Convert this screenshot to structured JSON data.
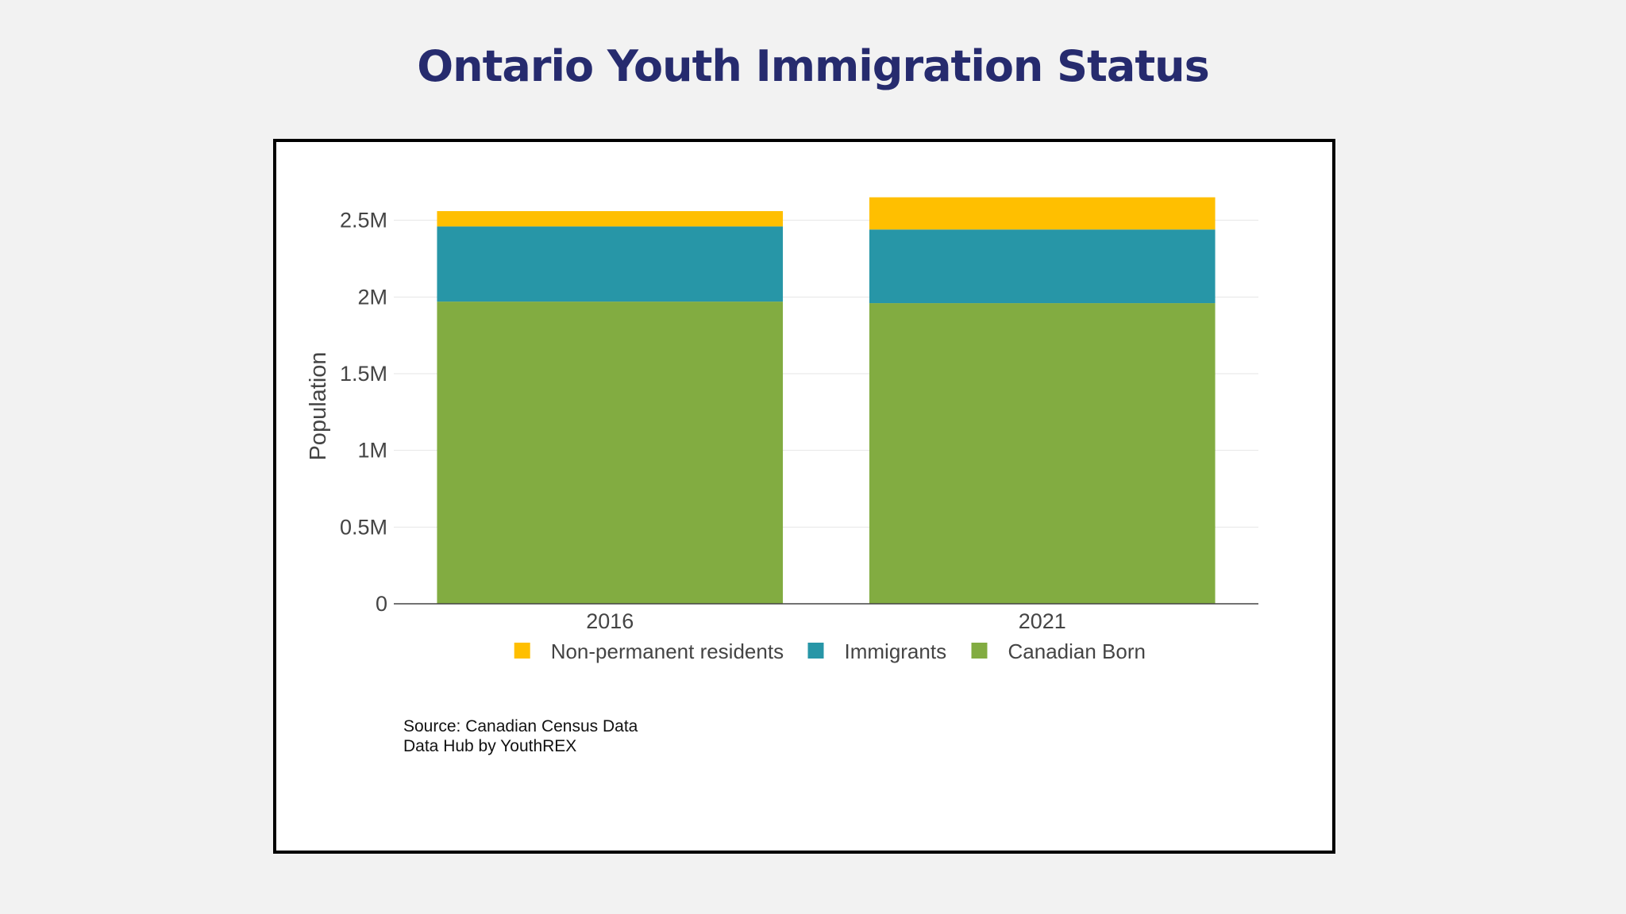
{
  "page": {
    "title": "Ontario Youth Immigration Status"
  },
  "chart_data": {
    "type": "bar",
    "stacked": true,
    "categories": [
      "2016",
      "2021"
    ],
    "series": [
      {
        "name": "Canadian Born",
        "color": "#82ac41",
        "values": [
          1970000,
          1960000
        ]
      },
      {
        "name": "Immigrants",
        "color": "#2796a7",
        "values": [
          490000,
          480000
        ]
      },
      {
        "name": "Non-permanent residents",
        "color": "#ffbf00",
        "values": [
          100000,
          210000
        ]
      }
    ],
    "legend_order": [
      "Non-permanent residents",
      "Immigrants",
      "Canadian Born"
    ],
    "xlabel": "",
    "ylabel": "Population",
    "ylim": [
      0,
      2700000
    ],
    "yticks": [
      {
        "value": 0,
        "label": "0"
      },
      {
        "value": 500000,
        "label": "0.5M"
      },
      {
        "value": 1000000,
        "label": "1M"
      },
      {
        "value": 1500000,
        "label": "1.5M"
      },
      {
        "value": 2000000,
        "label": "2M"
      },
      {
        "value": 2500000,
        "label": "2.5M"
      }
    ],
    "grid": true,
    "legend_position": "bottom"
  },
  "source": {
    "line1": "Source: Canadian Census Data",
    "line2": "Data Hub by YouthREX"
  }
}
